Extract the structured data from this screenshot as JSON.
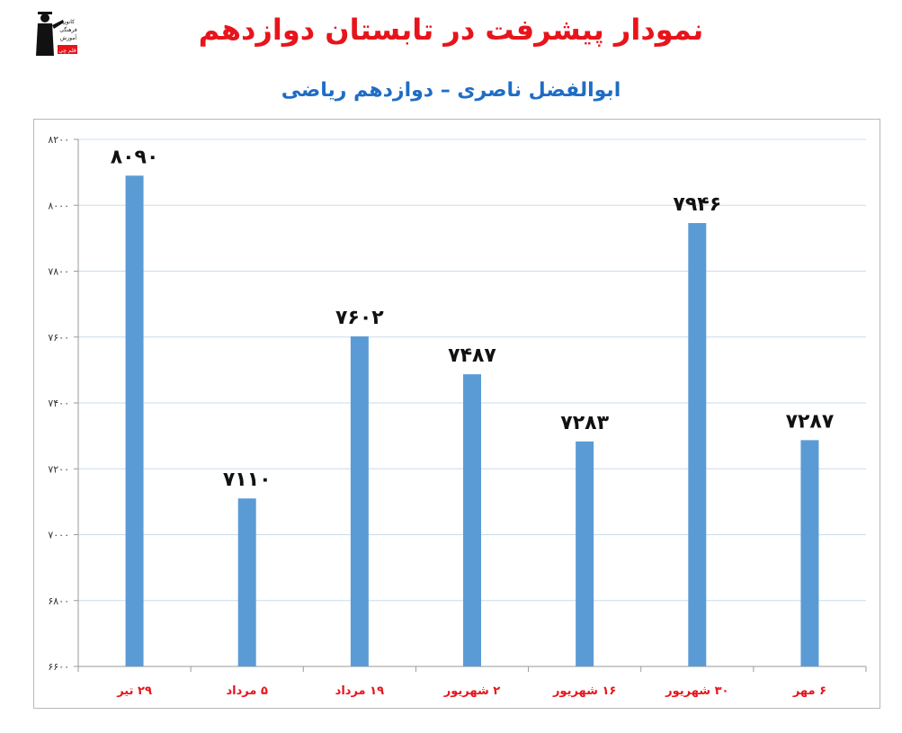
{
  "header": {
    "title": "نمودار پیشرفت در تابستان دوازدهم",
    "subtitle": "ابوالفضل ناصری – دوازدهم ریاضی"
  },
  "logo": {
    "icon": "graduate-logo-icon",
    "lines": [
      "کانون",
      "فرهنگی",
      "آموزش"
    ],
    "badge": "قلم چی"
  },
  "colors": {
    "title": "#e8141b",
    "subtitle": "#1f6dc5",
    "bar": "#5b9bd5",
    "category": "#e8141b",
    "grid": "#c9dced"
  },
  "chart_data": {
    "type": "bar",
    "categories": [
      "۲۹ تیر",
      "۵ مرداد",
      "۱۹ مرداد",
      "۲ شهریور",
      "۱۶ شهریور",
      "۳۰ شهریور",
      "۶ مهر"
    ],
    "values": [
      8090,
      7110,
      7602,
      7487,
      7283,
      7946,
      7287
    ],
    "value_labels": [
      "۸۰۹۰",
      "۷۱۱۰",
      "۷۶۰۲",
      "۷۴۸۷",
      "۷۲۸۳",
      "۷۹۴۶",
      "۷۲۸۷"
    ],
    "ylim": [
      6600,
      8200
    ],
    "yticks": [
      6600,
      6800,
      7000,
      7200,
      7400,
      7600,
      7800,
      8000,
      8200
    ],
    "ytick_labels": [
      "۶۶۰۰",
      "۶۸۰۰",
      "۷۰۰۰",
      "۷۲۰۰",
      "۷۴۰۰",
      "۷۶۰۰",
      "۷۸۰۰",
      "۸۰۰۰",
      "۸۲۰۰"
    ],
    "grid": true,
    "legend": "none"
  }
}
